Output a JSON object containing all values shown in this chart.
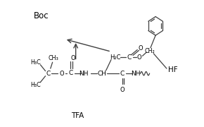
{
  "title": "",
  "background_color": "#ffffff",
  "line_color": "#404040",
  "text_color": "#000000",
  "fig_width": 2.9,
  "fig_height": 1.8,
  "dpi": 100,
  "labels": {
    "Boc": [
      0.2,
      0.88
    ],
    "TFA": [
      0.38,
      0.08
    ],
    "HF": [
      0.85,
      0.45
    ]
  },
  "label_fontsize": 7.5
}
